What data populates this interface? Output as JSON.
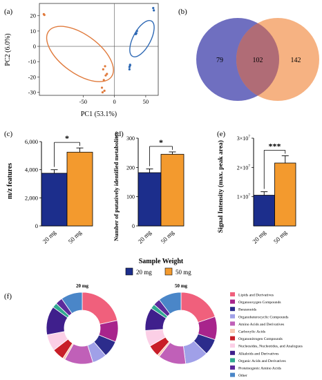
{
  "panels": {
    "a": "(a)",
    "b": "(b)",
    "c": "(c)",
    "d": "(d)",
    "e": "(e)",
    "f": "(f)"
  },
  "colors": {
    "blue": "#1c2e8c",
    "orange": "#f39a2e",
    "pca_blue": "#2d68b4",
    "pca_orange": "#e07a3c",
    "venn_left": "#6f6fc0",
    "venn_right": "#f4a56c",
    "venn_overlap": "#b06c76"
  },
  "shared": {
    "xlabel": "Sample Weight",
    "categories": [
      "20 mg",
      "50 mg"
    ],
    "legend": [
      "20 mg",
      "50 mg"
    ]
  },
  "chart_data": [
    {
      "type": "scatter",
      "panel": "a",
      "xlabel": "PC1 (53.1%)",
      "ylabel": "PC2 (6.0%)",
      "xlim": [
        -120,
        70
      ],
      "ylim": [
        -32,
        28
      ],
      "xticks": [
        "-50",
        "0",
        "50"
      ],
      "xtick_values": [
        -50,
        0,
        50
      ],
      "yticks": [
        "20",
        "10",
        "0",
        "-10",
        "-20",
        "-30"
      ],
      "ytick_values": [
        20,
        10,
        0,
        -10,
        -20,
        -30
      ],
      "series": [
        {
          "points": [
            [
              -113,
              21
            ],
            [
              -112,
              20.5
            ],
            [
              -15,
              -13
            ],
            [
              -18,
              -15
            ],
            [
              -12,
              -18
            ],
            [
              -14,
              -19
            ],
            [
              -17,
              -22
            ],
            [
              -20,
              -27
            ],
            [
              -16,
              -29
            ],
            [
              -19,
              -30
            ]
          ],
          "ellipse": {
            "cx": -55,
            "cy": -5,
            "rx": 62,
            "ry": 31,
            "angle_deg": 36
          }
        },
        {
          "points": [
            [
              62,
              25
            ],
            [
              63,
              23.5
            ],
            [
              36,
              10
            ],
            [
              35,
              8.5
            ],
            [
              34,
              8
            ],
            [
              25,
              -12
            ],
            [
              24,
              -13.5
            ],
            [
              24,
              -15
            ],
            [
              25,
              -12.5
            ]
          ],
          "ellipse": {
            "cx": 44,
            "cy": 5,
            "rx": 32,
            "ry": 14,
            "angle_deg": -62
          }
        }
      ]
    },
    {
      "type": "venn",
      "panel": "b",
      "only_left": "79",
      "overlap": "102",
      "only_right": "142"
    },
    {
      "type": "bar",
      "panel": "c",
      "ylabel": "m/z features",
      "categories": [
        "20 mg",
        "50 mg"
      ],
      "values": [
        3750,
        5250
      ],
      "errors": [
        250,
        300
      ],
      "ylim": [
        0,
        6000
      ],
      "yticks": [
        "0",
        "2,000",
        "4,000",
        "6,000"
      ],
      "ytick_values": [
        0,
        2000,
        4000,
        6000
      ],
      "significance": "*"
    },
    {
      "type": "bar",
      "panel": "d",
      "ylabel": "Number of putatively identified metabolites",
      "categories": [
        "20 mg",
        "50 mg"
      ],
      "values": [
        182,
        245
      ],
      "errors": [
        13,
        8
      ],
      "ylim": [
        0,
        300
      ],
      "yticks": [
        "0",
        "100",
        "200",
        "300"
      ],
      "ytick_values": [
        0,
        100,
        200,
        300
      ],
      "significance": "*"
    },
    {
      "type": "bar",
      "panel": "e",
      "ylabel": "Signal Intensity (max. peak area)",
      "categories": [
        "20 mg",
        "50 mg"
      ],
      "values": [
        10500000,
        21500000
      ],
      "errors": [
        1200000,
        2500000
      ],
      "ylim": [
        0,
        30000000
      ],
      "yticks": [
        {
          "base": "1×10",
          "exp": "7"
        },
        {
          "base": "2×10",
          "exp": "7"
        },
        {
          "base": "3×10",
          "exp": "7"
        }
      ],
      "ytick_values": [
        10000000,
        20000000,
        30000000
      ],
      "significance": "***"
    },
    {
      "type": "pie",
      "panel": "f",
      "donuts": [
        {
          "title": "20 mg",
          "values": [
            20,
            9,
            7,
            6,
            12,
            1,
            5,
            7,
            12,
            2,
            3,
            9
          ]
        },
        {
          "title": "50 mg",
          "values": [
            19,
            10,
            7,
            10,
            12,
            1,
            5,
            7,
            10,
            2,
            3,
            10
          ]
        }
      ],
      "categories": [
        {
          "label": "Lipids and Derivatives",
          "color": "#f0607c"
        },
        {
          "label": "Organooxygen Compounds",
          "color": "#a8248c"
        },
        {
          "label": "Benzenoids",
          "color": "#2c2c8c"
        },
        {
          "label": "Organoheterocyclic Compounds",
          "color": "#a0a0e8"
        },
        {
          "label": "Amino Acids and Derivatives",
          "color": "#c060b8"
        },
        {
          "label": "Carboxylic Acids",
          "color": "#f8c8b4"
        },
        {
          "label": "Organonitrogen Compounds",
          "color": "#c81e28"
        },
        {
          "label": "Nucleosides, Nucleotides, and Analogues",
          "color": "#fbcfe6"
        },
        {
          "label": "Alkaloids and Derivatives",
          "color": "#3f1f8c"
        },
        {
          "label": "Organic Acids and Derivatives",
          "color": "#30a890"
        },
        {
          "label": "Proteinogenic Amino Acids",
          "color": "#5c2a9c"
        },
        {
          "label": "Other",
          "color": "#4a86c8"
        }
      ]
    }
  ]
}
